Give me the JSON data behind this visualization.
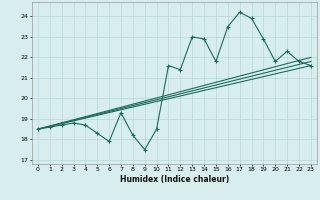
{
  "title": "",
  "xlabel": "Humidex (Indice chaleur)",
  "ylabel": "",
  "bg_color": "#d8eeee",
  "grid_color": "#b8d8d8",
  "line_color": "#1a6b5a",
  "xlim": [
    -0.5,
    23.5
  ],
  "ylim": [
    16.8,
    24.7
  ],
  "yticks": [
    17,
    18,
    19,
    20,
    21,
    22,
    23,
    24
  ],
  "xticks": [
    0,
    1,
    2,
    3,
    4,
    5,
    6,
    7,
    8,
    9,
    10,
    11,
    12,
    13,
    14,
    15,
    16,
    17,
    18,
    19,
    20,
    21,
    22,
    23
  ],
  "curve1_x": [
    0,
    1,
    2,
    3,
    4,
    5,
    6,
    7,
    8,
    9,
    10,
    11,
    12,
    13,
    14,
    15,
    16,
    17,
    18,
    19,
    20,
    21,
    22,
    23
  ],
  "curve1_y": [
    18.5,
    18.6,
    18.7,
    18.8,
    18.7,
    18.3,
    17.9,
    19.3,
    18.2,
    17.5,
    18.5,
    21.6,
    21.4,
    23.0,
    22.9,
    21.8,
    23.5,
    24.2,
    23.9,
    22.9,
    21.8,
    22.3,
    21.8,
    21.6
  ],
  "line1_x": [
    0,
    23
  ],
  "line1_y": [
    18.5,
    22.0
  ],
  "line2_x": [
    0,
    23
  ],
  "line2_y": [
    18.5,
    21.6
  ],
  "line3_x": [
    0,
    23
  ],
  "line3_y": [
    18.5,
    21.8
  ]
}
